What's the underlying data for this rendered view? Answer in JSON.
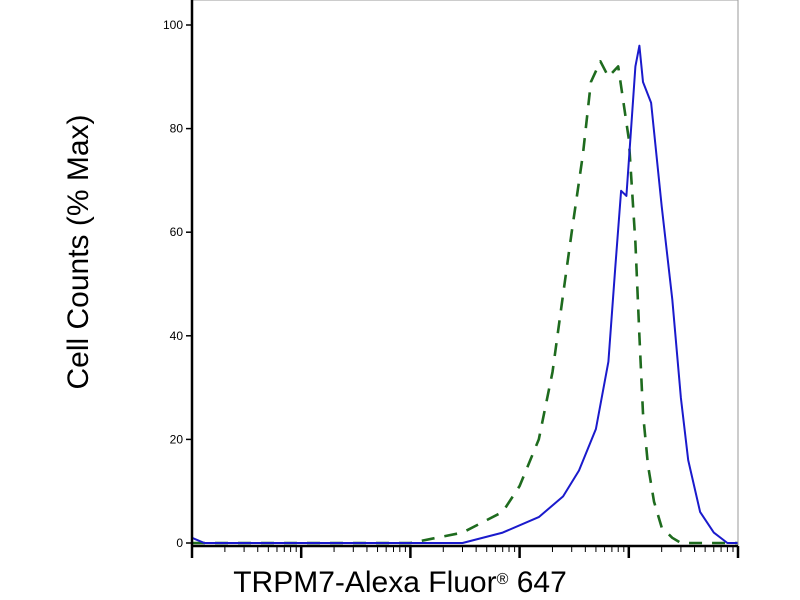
{
  "chart_data": {
    "type": "line",
    "title": "",
    "xlabel": "TRPM7-Alexa Fluor",
    "xlabel_mark": "®",
    "xlabel_suffix": " 647",
    "ylabel": "Cell Counts (% Max)",
    "x_scale": "log",
    "xlim": [
      1,
      100000
    ],
    "ylim": [
      0,
      100
    ],
    "yticks": [
      0,
      20,
      40,
      60,
      80,
      100
    ],
    "yticklabels": [
      "0",
      "20",
      "40",
      "60",
      "80",
      "100"
    ],
    "grid": false,
    "legend": "none",
    "series": [
      {
        "style": "dashed",
        "color": "#1e6b1e",
        "x": [
          1,
          100,
          300,
          700,
          1000,
          1500,
          2000,
          2500,
          3000,
          3800,
          4500,
          5500,
          6500,
          8000,
          10000,
          11500,
          12500,
          13500,
          15000,
          17000,
          20000,
          25000,
          30000,
          40000,
          60000,
          100000
        ],
        "y": [
          0,
          0,
          2,
          6,
          11,
          20,
          33,
          48,
          60,
          75,
          89,
          93,
          90,
          92,
          78,
          58,
          40,
          25,
          15,
          8,
          3,
          1,
          0,
          0,
          0,
          0
        ]
      },
      {
        "style": "solid",
        "color": "#1a1acc",
        "x": [
          1,
          1.3,
          1.6,
          2,
          3,
          100,
          300,
          700,
          1500,
          2500,
          3500,
          5000,
          6500,
          7500,
          8500,
          9500,
          10500,
          11500,
          12500,
          13500,
          16000,
          20000,
          25000,
          30000,
          35000,
          45000,
          60000,
          80000,
          100000
        ],
        "y": [
          1,
          0,
          0,
          0,
          0,
          0,
          0,
          2,
          5,
          9,
          14,
          22,
          35,
          53,
          68,
          67,
          80,
          92,
          96,
          89,
          85,
          65,
          47,
          28,
          16,
          6,
          2,
          0,
          0
        ]
      }
    ]
  }
}
